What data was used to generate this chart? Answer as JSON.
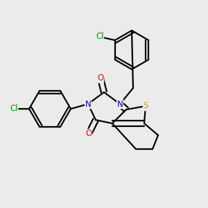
{
  "background_color": "#ebebeb",
  "atom_colors": {
    "C": "#000000",
    "N": "#0000cc",
    "O": "#ff0000",
    "S": "#ccaa00",
    "Cl": "#009900"
  },
  "figsize": [
    3.0,
    3.0
  ],
  "dpi": 100
}
